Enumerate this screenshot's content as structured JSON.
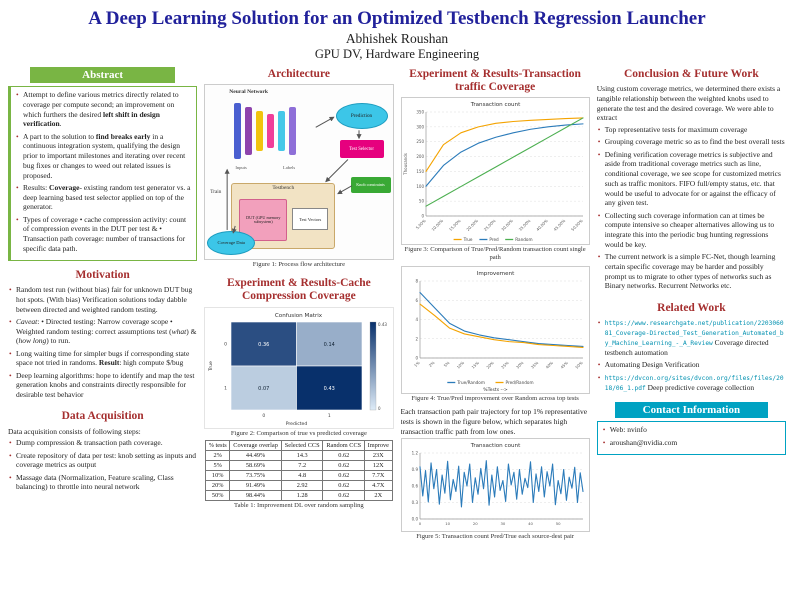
{
  "header": {
    "title": "A Deep Learning Solution for an Optimized Testbench Regression Launcher",
    "author": "Abhishek Roushan",
    "affiliation": "GPU DV, Hardware Engineering"
  },
  "abstract": {
    "title": "Abstract",
    "bullets": [
      "Attempt to define various metrics directly related to coverage per compute second; an improvement on which furthers the desired <b>left shift in design verification</b>.",
      "A part to the solution to <b>find breaks early</b> in a continuous integration system, qualifying the design prior to important milestones and iterating over recent bug fixes or changes to weed out related issues is proposed.",
      "Results: <b>Coverage</b>- existing random test generator vs. a deep learning based test selector applied on top of the generator.",
      "Types of coverage • cache compression activity: count of compression events in the DUT per test & • Transaction path coverage: number of transactions for specific data path."
    ]
  },
  "motivation": {
    "title": "Motivation",
    "bullets": [
      "Random test run (without bias) fair for unknown DUT bug hot spots. (With bias) Verification solutions today dabble between directed and weighted random testing.",
      "<i>Caveat</i>: • Directed testing: Narrow coverage scope • Weighted random testing: correct assumptions test (<i>what</i>) & (<i>how long</i>) to run.",
      "Long waiting time for simpler bugs if corresponding state space not tried in randoms. <b>Result</b>: high compute $/bug",
      "Deep learning algorithms: hope to identify and map the test generation knobs and constraints directly responsible for desirable test behavior"
    ]
  },
  "data_acquisition": {
    "title": "Data Acquisition",
    "intro": "Data acquisition consists of following steps:",
    "bullets": [
      "Dump compression & transaction path coverage.",
      "Create repository of data per test: knob setting as inputs and coverage metrics as output",
      "Massage data (Normalization, Feature scaling, Class balancing) to throttle into neural network"
    ]
  },
  "architecture": {
    "title": "Architecture",
    "figure_caption": "Figure 1: Process flow architecture",
    "labels": {
      "neural_network": "Neural Network",
      "prediction": "Prediction",
      "test_selector": "Test Selector",
      "train": "Train",
      "knob_constraints": "Knob constraints",
      "testbench": "Testbench",
      "dut": "DUT (GPU memory subsystem)",
      "test_vectors": "Test Vectors",
      "coverage_data": "Coverage Data",
      "inputs": "Inputs",
      "labels": "Labels"
    }
  },
  "cache_section": {
    "title": "Experiment & Results-Cache Compression Coverage",
    "figure_caption": "Figure 2: Comparison of true vs predicted coverage",
    "table": {
      "caption": "Table 1: Improvement DL over random sampling",
      "headers": [
        "% tests",
        "Coverage overlap",
        "Selected CCS",
        "Random CCS",
        "Improve"
      ],
      "rows": [
        [
          "2%",
          "44.49%",
          "14.3",
          "0.62",
          "23X"
        ],
        [
          "5%",
          "58.69%",
          "7.2",
          "0.62",
          "12X"
        ],
        [
          "10%",
          "73.75%",
          "4.8",
          "0.62",
          "7.7X"
        ],
        [
          "20%",
          "91.49%",
          "2.92",
          "0.62",
          "4.7X"
        ],
        [
          "50%",
          "98.44%",
          "1.28",
          "0.62",
          "2X"
        ]
      ]
    }
  },
  "transaction_section": {
    "title": "Experiment & Results-Transaction traffic Coverage",
    "figure3_caption": "Figure 3: Comparison of True/Pred/Random transaction count single path",
    "figure4_caption": "Figure 4: True/Pred improvement over Random across top tests",
    "body": "Each transaction path pair trajectory for top 1% representative tests is shown in the figure below, which separates high transaction traffic path from low ones.",
    "figure5_caption": "Figure 5: Transaction count Pred/True each source-dest pair"
  },
  "conclusion": {
    "title": "Conclusion & Future Work",
    "intro": "Using custom coverage metrics, we determined there exists a tangible relationship between the weighted knobs used to generate the test and the desired coverage. We were able to extract",
    "bullets": [
      "Top representative tests for maximum coverage",
      "Grouping coverage metric so as to find the best overall tests",
      "Defining verification coverage metrics is subjective and aside from traditional coverage metrics such as line, conditional coverage, we see scope for customized metrics such as traffic monitors. FIFO full/empty status, etc. that would be useful to advocate for or against the efficacy of any given test.",
      "Collecting such coverage information can at times be compute intensive so cheaper alternatives allowing us to integrate this into the periodic bug hunting regressions would be key.",
      "The current network is a simple FC-Net, though learning certain specific coverage may be harder and possibly prompt us to migrate to other types of networks such as Binary networks. Recurrent Networks etc."
    ]
  },
  "related_work": {
    "title": "Related Work",
    "items": [
      {
        "url": "https://www.researchgate.net/publication/220306081_Coverage-Directed_Test_Generation_Automated_by_Machine_Learning_-_A_Review",
        "text": "Coverage directed testbench automation"
      },
      {
        "url": "",
        "text": "Automating Design Verification"
      },
      {
        "url": "https://dvcon.org/sites/dvcon.org/files/files/2018/06_1.pdf",
        "text": "Deep predictive coverage collection"
      }
    ]
  },
  "contact": {
    "title": "Contact Information",
    "items": [
      "Web: nvinfo",
      "aroushan@nvidia.com"
    ]
  },
  "accent_colors": {
    "header_navy": "#21219b",
    "section_maroon": "#a52f2f",
    "abstract_green": "#79b544",
    "contact_teal": "#00a2c2"
  },
  "chart_data": [
    {
      "id": "fig2",
      "type": "heatmap",
      "title": "Confusion Matrix",
      "x_labels": [
        "0",
        "1"
      ],
      "y_labels": [
        "0",
        "1"
      ],
      "xlabel": "Predicted",
      "ylabel": "True",
      "values": [
        [
          0.36,
          0.14
        ],
        [
          0.07,
          0.43
        ]
      ]
    },
    {
      "id": "fig3",
      "type": "line",
      "title": "Transaction count",
      "ylabel": "Thousands",
      "ylim": [
        0,
        350
      ],
      "ydiv": 7,
      "rotate_ticks": true,
      "x": [
        "5.00%",
        "10.00%",
        "15.00%",
        "20.00%",
        "25.00%",
        "30.00%",
        "35.00%",
        "40.00%",
        "45.00%",
        "50.00%"
      ],
      "series": [
        {
          "name": "True",
          "color": "#f4a300",
          "values": [
            150,
            240,
            280,
            300,
            312,
            318,
            322,
            325,
            328,
            330
          ]
        },
        {
          "name": "Pred",
          "color": "#2b7bba",
          "values": [
            100,
            170,
            215,
            245,
            265,
            280,
            292,
            300,
            306,
            310
          ]
        },
        {
          "name": "Random",
          "color": "#4caf50",
          "values": [
            33,
            66,
            99,
            132,
            165,
            198,
            231,
            264,
            297,
            330
          ]
        }
      ]
    },
    {
      "id": "fig4",
      "type": "line",
      "title": "Improvement",
      "xlabel": "%Tests -->",
      "ylim": [
        0,
        8
      ],
      "ydiv": 4,
      "rotate_ticks": true,
      "x": [
        "1%",
        "2%",
        "5%",
        "10%",
        "15%",
        "20%",
        "25%",
        "30%",
        "35%",
        "40%",
        "45%",
        "50%"
      ],
      "series": [
        {
          "name": "True/Random",
          "color": "#2b7bba",
          "values": [
            6.8,
            5.2,
            3.6,
            2.8,
            2.4,
            2.1,
            1.9,
            1.7,
            1.5,
            1.4,
            1.3,
            1.2
          ]
        },
        {
          "name": "Pred/Random",
          "color": "#f4a300",
          "values": [
            5.6,
            4.4,
            3.1,
            2.5,
            2.2,
            1.9,
            1.7,
            1.6,
            1.4,
            1.3,
            1.2,
            1.1
          ]
        }
      ]
    },
    {
      "id": "fig5",
      "type": "line",
      "title": "Transaction count",
      "ylim": [
        0,
        1.2
      ],
      "ydiv": 4,
      "tick_step": 10,
      "legend": false,
      "series": [
        {
          "name": "Pred/True",
          "color": "#2b7bba",
          "values": [
            0.95,
            0.42,
            0.88,
            0.31,
            1.02,
            0.55,
            0.9,
            0.27,
            0.8,
            0.47,
            1.05,
            0.35,
            0.72,
            0.5,
            0.96,
            0.22,
            0.85,
            0.6,
            1.0,
            0.3,
            0.75,
            0.45,
            0.92,
            0.55,
            1.06,
            0.25,
            0.8,
            0.4,
            0.95,
            0.52,
            0.7,
            0.32,
            1.0,
            0.62,
            0.85,
            0.36,
            0.9,
            0.45,
            0.74,
            0.57,
            1.04,
            0.3,
            0.82,
            0.5,
            0.95,
            0.4,
            0.86,
            0.6,
            1.0,
            0.26,
            0.7,
            0.46,
            0.9,
            0.34,
            0.76,
            0.56,
            0.94,
            0.3,
            0.84,
            0.5
          ]
        }
      ]
    }
  ]
}
